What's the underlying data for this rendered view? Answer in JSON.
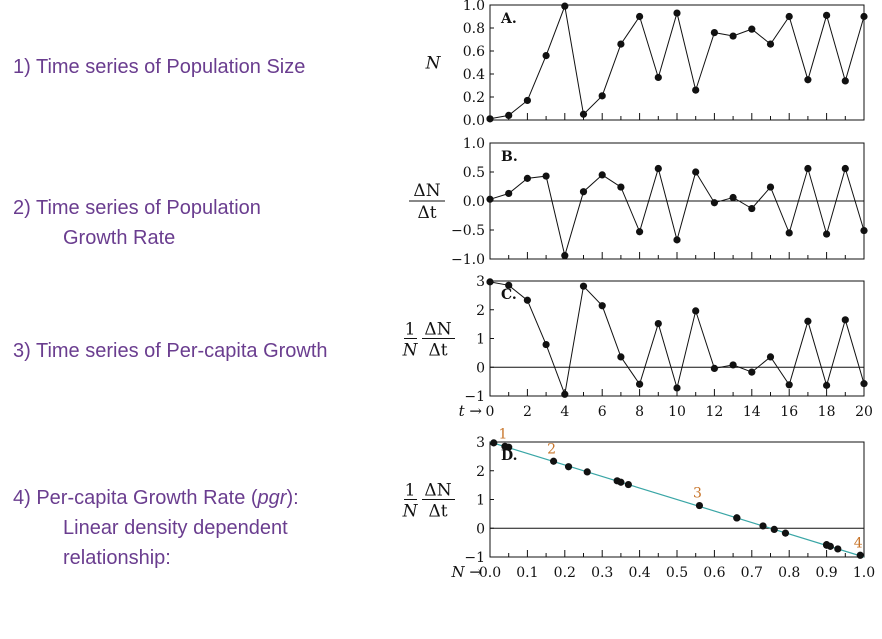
{
  "captions": [
    {
      "lines": [
        "1) Time series of Population Size"
      ]
    },
    {
      "lines": [
        "2) Time series of Population",
        "Growth Rate"
      ]
    },
    {
      "lines": [
        "3) Time series of Per-capita Growth"
      ]
    },
    {
      "lines": [
        "4) Per-capita Growth Rate (",
        "pgr",
        "):",
        "Linear density dependent",
        "relationship:"
      ]
    }
  ],
  "chart_data": [
    {
      "type": "line",
      "panel_label": "A.",
      "ylabel": "N",
      "x": [
        0,
        1,
        2,
        3,
        4,
        5,
        6,
        7,
        8,
        9,
        10,
        11,
        12,
        13,
        14,
        15,
        16,
        17,
        18,
        19,
        20
      ],
      "values": [
        0.01,
        0.04,
        0.17,
        0.56,
        0.99,
        0.05,
        0.21,
        0.66,
        0.9,
        0.37,
        0.93,
        0.26,
        0.76,
        0.73,
        0.79,
        0.66,
        0.9,
        0.35,
        0.91,
        0.34,
        0.9
      ],
      "ylim": [
        0,
        1
      ],
      "yticks": [
        "0.0",
        "0.2",
        "0.4",
        "0.6",
        "0.8",
        "1.0"
      ],
      "xlim": [
        0,
        20
      ]
    },
    {
      "type": "line",
      "panel_label": "B.",
      "ylabel": "ΔN/Δt",
      "x": [
        0,
        1,
        2,
        3,
        4,
        5,
        6,
        7,
        8,
        9,
        10,
        11,
        12,
        13,
        14,
        15,
        16,
        17,
        18,
        19,
        20
      ],
      "values": [
        0.03,
        0.13,
        0.39,
        0.43,
        -0.94,
        0.16,
        0.45,
        0.24,
        -0.53,
        0.56,
        -0.67,
        0.5,
        -0.03,
        0.06,
        -0.13,
        0.24,
        -0.55,
        0.56,
        -0.57,
        0.56,
        -0.51
      ],
      "ylim": [
        -1,
        1
      ],
      "yticks": [
        "−1.0",
        "−0.5",
        "0.0",
        "0.5",
        "1.0"
      ],
      "xlim": [
        0,
        20
      ]
    },
    {
      "type": "line",
      "panel_label": "C.",
      "ylabel": "1/N ΔN/Δt",
      "x": [
        0,
        1,
        2,
        3,
        4,
        5,
        6,
        7,
        8,
        9,
        10,
        11,
        12,
        13,
        14,
        15,
        16,
        17,
        18,
        19,
        20
      ],
      "values": [
        2.97,
        2.85,
        2.33,
        0.79,
        -0.94,
        2.82,
        2.14,
        0.36,
        -0.59,
        1.52,
        -0.72,
        1.96,
        -0.04,
        0.08,
        -0.17,
        0.36,
        -0.61,
        1.6,
        -0.63,
        1.65,
        -0.57
      ],
      "ylim": [
        -1,
        3
      ],
      "yticks": [
        "−1",
        "0",
        "1",
        "2",
        "3"
      ],
      "xlim": [
        0,
        20
      ],
      "xticks": [
        "0",
        "2",
        "4",
        "6",
        "8",
        "10",
        "12",
        "14",
        "16",
        "18",
        "20"
      ],
      "xlabel": "t → "
    },
    {
      "type": "scatter",
      "panel_label": "D.",
      "ylabel": "1/N ΔN/Δt",
      "x": [
        0.01,
        0.04,
        0.05,
        0.17,
        0.21,
        0.26,
        0.34,
        0.35,
        0.37,
        0.56,
        0.66,
        0.66,
        0.73,
        0.76,
        0.79,
        0.9,
        0.9,
        0.91,
        0.93,
        0.99
      ],
      "y": [
        2.97,
        2.85,
        2.82,
        2.33,
        2.14,
        1.96,
        1.65,
        1.6,
        1.52,
        0.79,
        0.36,
        0.36,
        0.08,
        -0.04,
        -0.17,
        -0.59,
        -0.57,
        -0.63,
        -0.72,
        -0.94
      ],
      "fit_line": {
        "x": [
          0,
          1
        ],
        "y": [
          3,
          -1
        ],
        "color": "#3aa6a6"
      },
      "annotations": [
        {
          "text": "1",
          "x": 0.04,
          "y": 2.85
        },
        {
          "text": "2",
          "x": 0.17,
          "y": 2.33
        },
        {
          "text": "3",
          "x": 0.56,
          "y": 0.79
        },
        {
          "text": "4",
          "x": 0.99,
          "y": -0.94
        }
      ],
      "ylim": [
        -1,
        3
      ],
      "yticks": [
        "−1",
        "0",
        "1",
        "2",
        "3"
      ],
      "xlim": [
        0,
        1
      ],
      "xticks": [
        "0.0",
        "0.1",
        "0.2",
        "0.3",
        "0.4",
        "0.5",
        "0.6",
        "0.7",
        "0.8",
        "0.9",
        "1.0"
      ],
      "xlabel": "N → "
    }
  ],
  "colors": {
    "caption": "#6a3d8f",
    "annotation": "#c8752a",
    "fit_line": "#3aa6a6",
    "ink": "#111111"
  }
}
